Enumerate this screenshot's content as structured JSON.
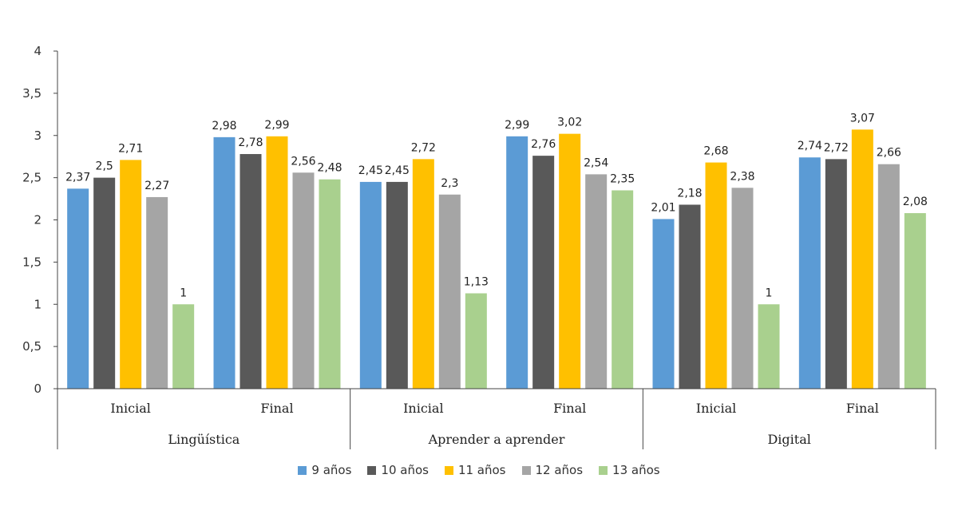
{
  "chart_data": {
    "type": "bar",
    "groups": [
      "Lingüística",
      "Aprender a aprender",
      "Digital"
    ],
    "subcategories": [
      "Inicial",
      "Final"
    ],
    "categories": [
      "Inicial",
      "Final",
      "Inicial",
      "Final",
      "Inicial",
      "Final"
    ],
    "value_labels": [
      [
        "2,37",
        "2,5",
        "2,71",
        "2,27",
        "1"
      ],
      [
        "2,98",
        "2,78",
        "2,99",
        "2,56",
        "2,48"
      ],
      [
        "2,45",
        "2,45",
        "2,72",
        "2,3",
        "1,13"
      ],
      [
        "2,99",
        "2,76",
        "3,02",
        "2,54",
        "2,35"
      ],
      [
        "2,01",
        "2,18",
        "2,68",
        "2,38",
        "1"
      ],
      [
        "2,74",
        "2,72",
        "3,07",
        "2,66",
        "2,08"
      ]
    ],
    "series": [
      {
        "name": "9 años",
        "color": "#5b9bd5",
        "values": [
          2.37,
          2.98,
          2.45,
          2.99,
          2.01,
          2.74
        ]
      },
      {
        "name": "10 años",
        "color": "#595959",
        "values": [
          2.5,
          2.78,
          2.45,
          2.76,
          2.18,
          2.72
        ]
      },
      {
        "name": "11 años",
        "color": "#ffc000",
        "values": [
          2.71,
          2.99,
          2.72,
          3.02,
          2.68,
          3.07
        ]
      },
      {
        "name": "12 años",
        "color": "#a5a5a5",
        "values": [
          2.27,
          2.56,
          2.3,
          2.54,
          2.38,
          2.66
        ]
      },
      {
        "name": "13 años",
        "color": "#a9d08e",
        "values": [
          1,
          2.48,
          1.13,
          2.35,
          1,
          2.08
        ]
      }
    ],
    "ylim": [
      0,
      4
    ],
    "y_ticks": [
      0,
      0.5,
      1,
      1.5,
      2,
      2.5,
      3,
      3.5,
      4
    ],
    "y_tick_labels": [
      "0",
      "0,5",
      "1",
      "1,5",
      "2",
      "2,5",
      "3",
      "3,5",
      "4"
    ],
    "grid": false,
    "legend_position": "bottom"
  }
}
